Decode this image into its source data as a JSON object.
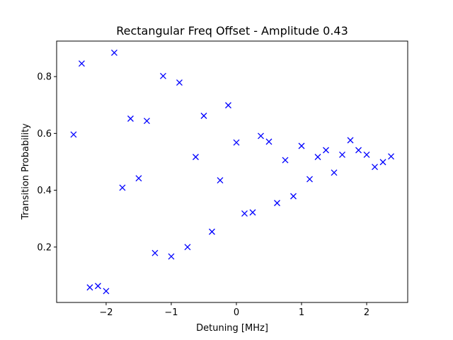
{
  "chart_data": {
    "type": "scatter",
    "title": "Rectangular Freq Offset - Amplitude 0.43",
    "xlabel": "Detuning [MHz]",
    "ylabel": "Transition Probability",
    "xlim": [
      -2.76,
      2.63
    ],
    "ylim": [
      0.005,
      0.925
    ],
    "xticks": [
      -2,
      -1,
      0,
      1,
      2
    ],
    "yticks": [
      0.2,
      0.4,
      0.6,
      0.8
    ],
    "xtick_labels": [
      "−2",
      "−1",
      "0",
      "1",
      "2"
    ],
    "ytick_labels": [
      "0.2",
      "0.4",
      "0.6",
      "0.8"
    ],
    "marker": "x",
    "color": "#0000ff",
    "grid": false,
    "legend": "none",
    "series": [
      {
        "x": [
          -2.5,
          -2.375,
          -2.25,
          -2.125,
          -2.0,
          -1.875,
          -1.75,
          -1.625,
          -1.5,
          -1.375,
          -1.25,
          -1.125,
          -1.0,
          -0.875,
          -0.75,
          -0.625,
          -0.5,
          -0.375,
          -0.25,
          -0.125,
          0.0,
          0.125,
          0.25,
          0.375,
          0.5,
          0.625,
          0.75,
          0.875,
          1.0,
          1.125,
          1.25,
          1.375,
          1.5,
          1.625,
          1.75,
          1.875,
          2.0,
          2.125,
          2.25,
          2.375
        ],
        "y": [
          0.596,
          0.846,
          0.058,
          0.063,
          0.045,
          0.884,
          0.409,
          0.652,
          0.442,
          0.644,
          0.179,
          0.802,
          0.167,
          0.779,
          0.2,
          0.517,
          0.662,
          0.254,
          0.435,
          0.699,
          0.568,
          0.318,
          0.322,
          0.591,
          0.571,
          0.355,
          0.506,
          0.379,
          0.556,
          0.439,
          0.517,
          0.541,
          0.462,
          0.525,
          0.576,
          0.541,
          0.525,
          0.482,
          0.499,
          0.519
        ]
      }
    ]
  }
}
